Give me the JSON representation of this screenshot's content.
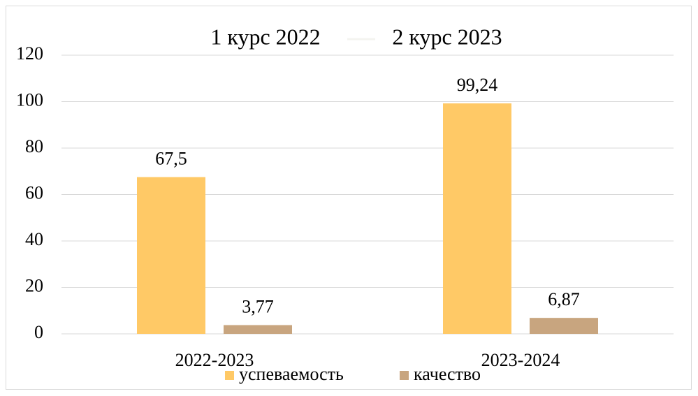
{
  "chart_data": {
    "type": "bar",
    "annotations": [
      "1 курс 2022",
      "2 курс 2023"
    ],
    "categories": [
      "2022-2023",
      "2023-2024"
    ],
    "series": [
      {
        "name": "успеваемость",
        "color": "#ffc966",
        "values": [
          67.5,
          99.24
        ],
        "value_labels": [
          "67,5",
          "99,24"
        ]
      },
      {
        "name": "качество",
        "color": "#c8a57f",
        "values": [
          3.77,
          6.87
        ],
        "value_labels": [
          "3,77",
          "6,87"
        ]
      }
    ],
    "ylim": [
      0,
      120
    ],
    "yticks": [
      0,
      20,
      40,
      60,
      80,
      100,
      120
    ],
    "grid": true,
    "legend": "bottom"
  }
}
